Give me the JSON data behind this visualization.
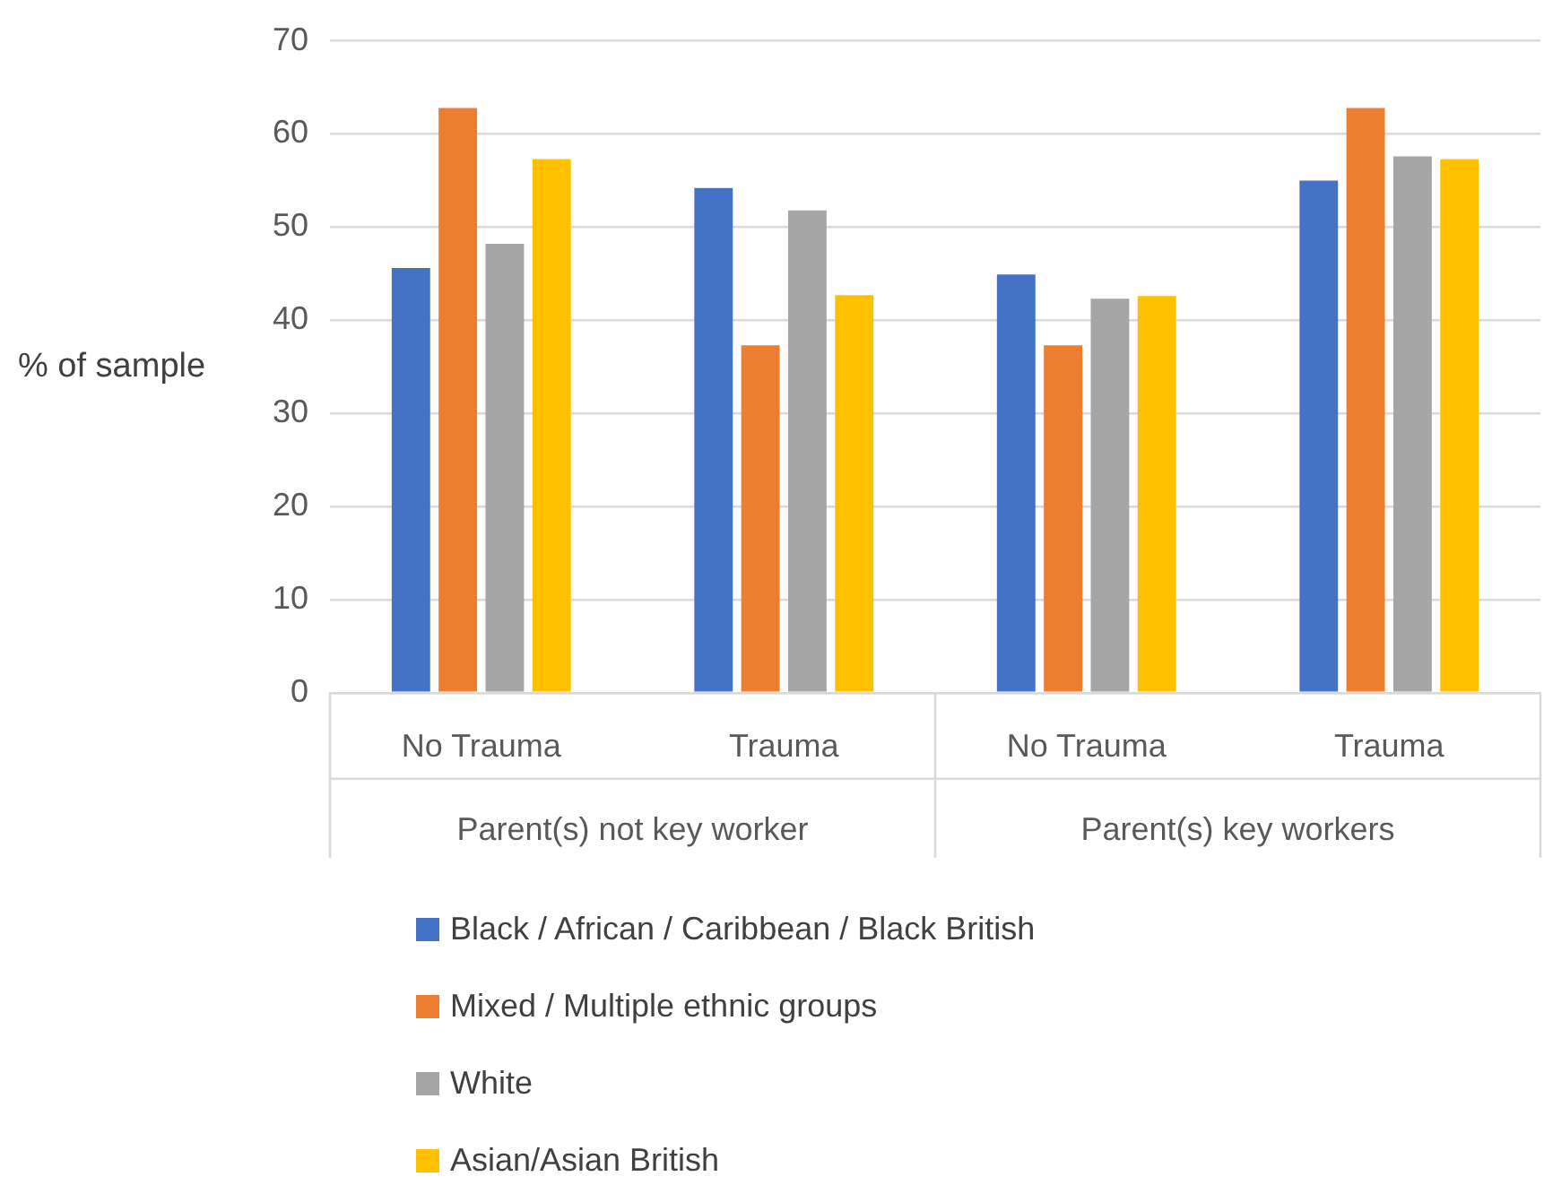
{
  "chart_data": {
    "type": "bar",
    "ylabel": "% of sample",
    "categories": [
      "No Trauma",
      "Trauma",
      "No Trauma",
      "Trauma"
    ],
    "annotations": [
      "Parent(s) not key worker",
      "Parent(s) key workers"
    ],
    "series": [
      {
        "name": "Black / African / Caribbean / Black British",
        "color": "#4472c4",
        "values": [
          45.6,
          54.2,
          44.9,
          55.0
        ]
      },
      {
        "name": "Mixed / Multiple ethnic groups",
        "color": "#ed7d31",
        "values": [
          62.8,
          37.3,
          37.3,
          62.8
        ]
      },
      {
        "name": "White",
        "color": "#a5a5a5",
        "values": [
          48.2,
          51.8,
          42.3,
          57.6
        ]
      },
      {
        "name": "Asian/Asian British",
        "color": "#ffc000",
        "values": [
          57.3,
          42.7,
          42.6,
          57.3
        ]
      }
    ],
    "ylim": [
      0,
      70
    ],
    "yticks": [
      0,
      10,
      20,
      30,
      40,
      50,
      60,
      70
    ],
    "grid": "y",
    "legend": "bottom"
  }
}
